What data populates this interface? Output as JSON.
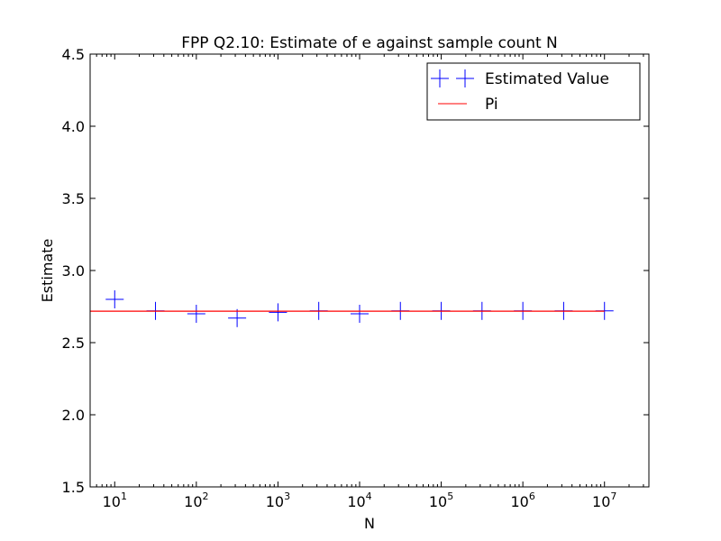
{
  "chart_data": {
    "type": "scatter",
    "title": "FPP Q2.10: Estimate of e against sample count N",
    "xlabel": "N",
    "ylabel": "Estimate",
    "xscale": "log",
    "xlim": [
      5,
      35000000
    ],
    "ylim": [
      1.5,
      4.5
    ],
    "grid": false,
    "legend_position": "top-right",
    "yticks": [
      "1.5",
      "2.0",
      "2.5",
      "3.0",
      "3.5",
      "4.0",
      "4.5"
    ],
    "xticks": [
      {
        "value": 10,
        "base": "10",
        "exp": "1"
      },
      {
        "value": 100,
        "base": "10",
        "exp": "2"
      },
      {
        "value": 1000,
        "base": "10",
        "exp": "3"
      },
      {
        "value": 10000,
        "base": "10",
        "exp": "4"
      },
      {
        "value": 100000,
        "base": "10",
        "exp": "5"
      },
      {
        "value": 1000000,
        "base": "10",
        "exp": "6"
      },
      {
        "value": 10000000,
        "base": "10",
        "exp": "7"
      }
    ],
    "series": [
      {
        "name": "Estimated Value",
        "color": "#0000ff",
        "marker": "plus",
        "x": [
          3.16,
          10,
          31.6,
          100,
          316,
          1000,
          3160,
          10000,
          31600,
          100000,
          316000,
          1000000,
          3160000,
          10000000
        ],
        "y": [
          2.8,
          2.8,
          2.72,
          2.7,
          2.67,
          2.71,
          2.72,
          2.7,
          2.72,
          2.72,
          2.72,
          2.72,
          2.72,
          2.72
        ]
      },
      {
        "name": "Pi",
        "color": "#ff0000",
        "marker": "line",
        "x": [
          3.16,
          10000000
        ],
        "y": [
          2.718,
          2.718
        ]
      }
    ]
  }
}
